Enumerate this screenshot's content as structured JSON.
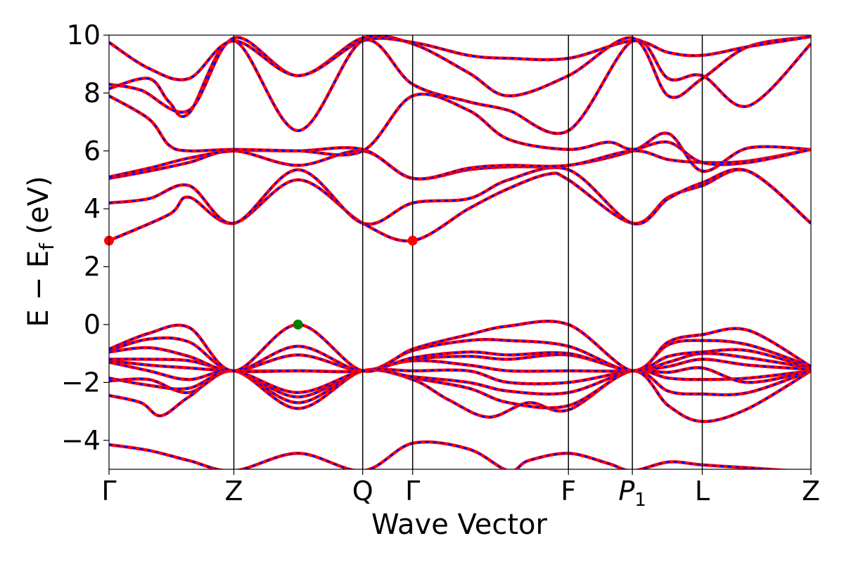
{
  "chart_data": {
    "type": "line",
    "title": "",
    "xlabel": "Wave Vector",
    "ylabel": "E − E_f (eV)",
    "ylabel_main": "E  −  E",
    "ylabel_sub": "f",
    "ylabel_unit": " (eV)",
    "ylim": [
      -5,
      10
    ],
    "xlim": [
      0,
      1
    ],
    "yticks": [
      -4,
      -2,
      0,
      2,
      4,
      6,
      8,
      10
    ],
    "ytick_labels": [
      "−4",
      "−2",
      "0",
      "2",
      "4",
      "6",
      "8",
      "10"
    ],
    "kpoints": [
      {
        "label": "Γ",
        "x": 0.0
      },
      {
        "label": "Z",
        "x": 0.3125
      },
      {
        "label": "Q",
        "x": 0.635
      },
      {
        "label": "Γ",
        "x": 0.76
      },
      {
        "label": "F",
        "x": 1.15
      },
      {
        "label": "P",
        "sub": "1",
        "italic": true,
        "x": 1.31
      },
      {
        "label": "L",
        "x": 1.485
      },
      {
        "label": "Z",
        "x": 1.757
      }
    ],
    "line_colors": {
      "spin_up": "#ff0000",
      "spin_down": "#0000ff"
    },
    "vbm": {
      "x": 0.473,
      "y": 0.0,
      "color": "#008000"
    },
    "cbm": [
      {
        "x": 0.0,
        "y": 2.9,
        "color": "#ff0000"
      },
      {
        "x": 0.76,
        "y": 2.9,
        "color": "#ff0000"
      }
    ],
    "bands": [
      [
        [
          0,
          -4.15
        ],
        [
          0.1,
          -4.35
        ],
        [
          0.2,
          -4.7
        ],
        [
          0.3125,
          -5.05
        ],
        [
          0.473,
          -4.45
        ],
        [
          0.635,
          -5.05
        ],
        [
          0.76,
          -4.1
        ],
        [
          0.9,
          -4.3
        ],
        [
          1.0,
          -5.05
        ],
        [
          1.05,
          -4.7
        ],
        [
          1.15,
          -4.45
        ],
        [
          1.25,
          -4.8
        ],
        [
          1.31,
          -5.05
        ],
        [
          1.4,
          -4.75
        ],
        [
          1.485,
          -4.85
        ],
        [
          1.6,
          -4.95
        ],
        [
          1.757,
          -5.1
        ]
      ],
      [
        [
          0,
          -2.45
        ],
        [
          0.08,
          -2.7
        ],
        [
          0.13,
          -3.15
        ],
        [
          0.2,
          -2.5
        ],
        [
          0.3125,
          -1.6
        ],
        [
          0.473,
          -2.9
        ],
        [
          0.635,
          -1.6
        ],
        [
          0.76,
          -1.9
        ],
        [
          0.85,
          -2.6
        ],
        [
          0.95,
          -3.2
        ],
        [
          1.05,
          -2.7
        ],
        [
          1.15,
          -2.95
        ],
        [
          1.31,
          -1.6
        ],
        [
          1.4,
          -2.8
        ],
        [
          1.485,
          -3.35
        ],
        [
          1.6,
          -2.9
        ],
        [
          1.757,
          -1.6
        ]
      ],
      [
        [
          0,
          -1.95
        ],
        [
          0.1,
          -1.9
        ],
        [
          0.2,
          -2.35
        ],
        [
          0.3125,
          -1.6
        ],
        [
          0.473,
          -2.7
        ],
        [
          0.635,
          -1.6
        ],
        [
          0.76,
          -1.85
        ],
        [
          0.9,
          -2.2
        ],
        [
          1.0,
          -2.7
        ],
        [
          1.15,
          -2.8
        ],
        [
          1.31,
          -1.6
        ],
        [
          1.4,
          -2.3
        ],
        [
          1.485,
          -2.4
        ],
        [
          1.6,
          -2.35
        ],
        [
          1.757,
          -1.6
        ]
      ],
      [
        [
          0,
          -1.85
        ],
        [
          0.1,
          -2.1
        ],
        [
          0.2,
          -2.2
        ],
        [
          0.3125,
          -1.6
        ],
        [
          0.473,
          -2.5
        ],
        [
          0.635,
          -1.6
        ],
        [
          0.76,
          -1.8
        ],
        [
          0.9,
          -2.0
        ],
        [
          1.0,
          -2.3
        ],
        [
          1.15,
          -2.35
        ],
        [
          1.31,
          -1.6
        ],
        [
          1.4,
          -1.85
        ],
        [
          1.485,
          -1.9
        ],
        [
          1.6,
          -1.85
        ],
        [
          1.757,
          -1.6
        ]
      ],
      [
        [
          0,
          -1.3
        ],
        [
          0.1,
          -1.6
        ],
        [
          0.2,
          -1.9
        ],
        [
          0.3125,
          -1.6
        ],
        [
          0.473,
          -2.35
        ],
        [
          0.635,
          -1.6
        ],
        [
          0.76,
          -1.6
        ],
        [
          0.9,
          -1.6
        ],
        [
          1.0,
          -2.0
        ],
        [
          1.15,
          -2.0
        ],
        [
          1.31,
          -1.6
        ],
        [
          1.4,
          -1.65
        ],
        [
          1.485,
          -1.5
        ],
        [
          1.6,
          -2.0
        ],
        [
          1.757,
          -1.6
        ]
      ],
      [
        [
          0,
          -1.25
        ],
        [
          0.1,
          -1.4
        ],
        [
          0.2,
          -1.5
        ],
        [
          0.3125,
          -1.6
        ],
        [
          0.473,
          -1.6
        ],
        [
          0.635,
          -1.6
        ],
        [
          0.76,
          -1.25
        ],
        [
          0.9,
          -1.4
        ],
        [
          1.0,
          -1.6
        ],
        [
          1.15,
          -1.6
        ],
        [
          1.31,
          -1.6
        ],
        [
          1.4,
          -1.45
        ],
        [
          1.485,
          -1.2
        ],
        [
          1.6,
          -1.4
        ],
        [
          1.757,
          -1.55
        ]
      ],
      [
        [
          0,
          -1.2
        ],
        [
          0.1,
          -1.2
        ],
        [
          0.2,
          -1.25
        ],
        [
          0.3125,
          -1.6
        ],
        [
          0.473,
          -1.6
        ],
        [
          0.635,
          -1.6
        ],
        [
          0.76,
          -1.2
        ],
        [
          0.9,
          -1.1
        ],
        [
          1.0,
          -1.2
        ],
        [
          1.15,
          -1.05
        ],
        [
          1.31,
          -1.6
        ],
        [
          1.4,
          -1.3
        ],
        [
          1.485,
          -1.0
        ],
        [
          1.6,
          -1.15
        ],
        [
          1.757,
          -1.5
        ]
      ],
      [
        [
          0,
          -0.95
        ],
        [
          0.1,
          -0.8
        ],
        [
          0.2,
          -1.1
        ],
        [
          0.3125,
          -1.6
        ],
        [
          0.473,
          -1.05
        ],
        [
          0.635,
          -1.6
        ],
        [
          0.76,
          -1.15
        ],
        [
          0.9,
          -0.95
        ],
        [
          1.0,
          -1.05
        ],
        [
          1.15,
          -1.0
        ],
        [
          1.31,
          -1.6
        ],
        [
          1.4,
          -1.1
        ],
        [
          1.485,
          -0.95
        ],
        [
          1.6,
          -0.9
        ],
        [
          1.757,
          -1.5
        ]
      ],
      [
        [
          0,
          -0.9
        ],
        [
          0.1,
          -0.5
        ],
        [
          0.2,
          -0.6
        ],
        [
          0.3125,
          -1.6
        ],
        [
          0.473,
          -0.75
        ],
        [
          0.635,
          -1.6
        ],
        [
          0.76,
          -0.9
        ],
        [
          0.9,
          -0.55
        ],
        [
          1.0,
          -0.55
        ],
        [
          1.15,
          -0.75
        ],
        [
          1.31,
          -1.6
        ],
        [
          1.4,
          -0.7
        ],
        [
          1.485,
          -0.55
        ],
        [
          1.6,
          -0.7
        ],
        [
          1.757,
          -1.45
        ]
      ],
      [
        [
          0,
          -0.85
        ],
        [
          0.1,
          -0.3
        ],
        [
          0.2,
          -0.1
        ],
        [
          0.3125,
          -1.6
        ],
        [
          0.473,
          0.0
        ],
        [
          0.635,
          -1.6
        ],
        [
          0.76,
          -0.85
        ],
        [
          0.9,
          -0.35
        ],
        [
          1.0,
          -0.05
        ],
        [
          1.15,
          0.0
        ],
        [
          1.31,
          -1.6
        ],
        [
          1.4,
          -0.6
        ],
        [
          1.485,
          -0.35
        ],
        [
          1.6,
          -0.2
        ],
        [
          1.757,
          -1.45
        ]
      ],
      [
        [
          0,
          2.9
        ],
        [
          0.15,
          3.8
        ],
        [
          0.2,
          4.4
        ],
        [
          0.3125,
          3.5
        ],
        [
          0.473,
          5.0
        ],
        [
          0.635,
          3.5
        ],
        [
          0.76,
          2.9
        ],
        [
          0.9,
          4.0
        ],
        [
          1.0,
          4.7
        ],
        [
          1.1,
          5.2
        ],
        [
          1.15,
          5.0
        ],
        [
          1.31,
          3.5
        ],
        [
          1.4,
          4.4
        ],
        [
          1.485,
          4.8
        ],
        [
          1.6,
          5.3
        ],
        [
          1.757,
          3.5
        ]
      ],
      [
        [
          0,
          4.2
        ],
        [
          0.1,
          4.35
        ],
        [
          0.2,
          4.8
        ],
        [
          0.3125,
          3.5
        ],
        [
          0.473,
          5.35
        ],
        [
          0.635,
          3.5
        ],
        [
          0.76,
          4.2
        ],
        [
          0.9,
          4.35
        ],
        [
          1.0,
          5.0
        ],
        [
          1.15,
          5.35
        ],
        [
          1.31,
          3.5
        ],
        [
          1.4,
          4.35
        ],
        [
          1.485,
          4.9
        ],
        [
          1.6,
          5.3
        ],
        [
          1.757,
          3.5
        ]
      ],
      [
        [
          0,
          5.05
        ],
        [
          0.1,
          5.3
        ],
        [
          0.2,
          5.6
        ],
        [
          0.3125,
          6.0
        ],
        [
          0.473,
          5.5
        ],
        [
          0.635,
          6.0
        ],
        [
          0.76,
          5.05
        ],
        [
          0.9,
          5.35
        ],
        [
          1.0,
          5.45
        ],
        [
          1.15,
          5.5
        ],
        [
          1.31,
          6.0
        ],
        [
          1.4,
          6.6
        ],
        [
          1.485,
          5.3
        ],
        [
          1.6,
          6.1
        ],
        [
          1.757,
          6.05
        ]
      ],
      [
        [
          0,
          5.1
        ],
        [
          0.1,
          5.4
        ],
        [
          0.2,
          5.75
        ],
        [
          0.3125,
          6.0
        ],
        [
          0.473,
          6.0
        ],
        [
          0.635,
          6.05
        ],
        [
          0.76,
          5.05
        ],
        [
          0.9,
          5.4
        ],
        [
          1.0,
          5.5
        ],
        [
          1.15,
          5.5
        ],
        [
          1.31,
          6.0
        ],
        [
          1.4,
          5.7
        ],
        [
          1.485,
          5.6
        ],
        [
          1.6,
          5.65
        ],
        [
          1.757,
          6.05
        ]
      ],
      [
        [
          0,
          7.9
        ],
        [
          0.1,
          7.1
        ],
        [
          0.15,
          6.2
        ],
        [
          0.2,
          6.0
        ],
        [
          0.3125,
          6.05
        ],
        [
          0.473,
          6.0
        ],
        [
          0.635,
          6.0
        ],
        [
          0.76,
          7.9
        ],
        [
          0.9,
          7.4
        ],
        [
          1.0,
          6.4
        ],
        [
          1.15,
          6.05
        ],
        [
          1.25,
          6.3
        ],
        [
          1.31,
          6.05
        ],
        [
          1.4,
          6.3
        ],
        [
          1.485,
          5.6
        ],
        [
          1.6,
          5.6
        ],
        [
          1.757,
          6.05
        ]
      ],
      [
        [
          0,
          8.15
        ],
        [
          0.1,
          8.5
        ],
        [
          0.15,
          7.7
        ],
        [
          0.2,
          7.3
        ],
        [
          0.3125,
          9.8
        ],
        [
          0.473,
          6.7
        ],
        [
          0.635,
          9.8
        ],
        [
          0.76,
          8.3
        ],
        [
          0.9,
          7.7
        ],
        [
          1.0,
          7.4
        ],
        [
          1.15,
          6.7
        ],
        [
          1.31,
          9.8
        ],
        [
          1.4,
          8.5
        ],
        [
          1.485,
          8.6
        ],
        [
          1.6,
          7.55
        ],
        [
          1.757,
          9.7
        ]
      ],
      [
        [
          0,
          8.3
        ],
        [
          0.08,
          8.1
        ],
        [
          0.2,
          7.4
        ],
        [
          0.3125,
          9.9
        ],
        [
          0.473,
          8.6
        ],
        [
          0.635,
          9.9
        ],
        [
          0.76,
          9.7
        ],
        [
          0.9,
          8.7
        ],
        [
          1.0,
          7.9
        ],
        [
          1.15,
          8.6
        ],
        [
          1.31,
          9.9
        ],
        [
          1.4,
          7.9
        ],
        [
          1.485,
          8.5
        ],
        [
          1.6,
          9.6
        ],
        [
          1.757,
          9.95
        ]
      ],
      [
        [
          0,
          9.75
        ],
        [
          0.1,
          8.85
        ],
        [
          0.2,
          8.5
        ],
        [
          0.3125,
          9.8
        ],
        [
          0.473,
          8.6
        ],
        [
          0.635,
          9.8
        ],
        [
          0.76,
          9.75
        ],
        [
          0.9,
          9.3
        ],
        [
          1.0,
          9.2
        ],
        [
          1.15,
          9.2
        ],
        [
          1.31,
          9.8
        ],
        [
          1.4,
          9.4
        ],
        [
          1.485,
          9.3
        ],
        [
          1.6,
          9.6
        ],
        [
          1.757,
          9.95
        ]
      ]
    ]
  }
}
